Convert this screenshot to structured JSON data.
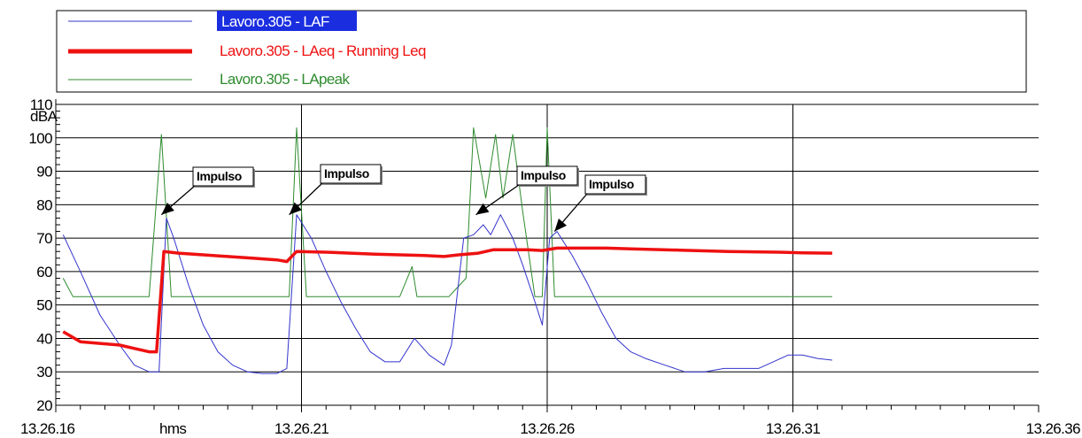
{
  "chart_data": {
    "type": "line",
    "ylabel": "dBA",
    "xlabel": "hms",
    "ylim": [
      20,
      110
    ],
    "xlim": [
      0,
      20
    ],
    "y_ticks": [
      20,
      30,
      40,
      50,
      60,
      70,
      80,
      90,
      100,
      110
    ],
    "x_ticks": [
      {
        "value": 0,
        "label": "13.26.16"
      },
      {
        "value": 5,
        "label": "13.26.21"
      },
      {
        "value": 10,
        "label": "13.26.26"
      },
      {
        "value": 15,
        "label": "13.26.31"
      },
      {
        "value": 20,
        "label": "13.26.36"
      }
    ],
    "grid": true,
    "legend_position": "top",
    "series": [
      {
        "name": "Lavoro.305 - LAF",
        "color": "#3333cc",
        "highlighted": true,
        "x": [
          0.15,
          0.5,
          0.9,
          1.3,
          1.6,
          1.9,
          2.1,
          2.25,
          2.4,
          2.7,
          3.0,
          3.3,
          3.6,
          3.9,
          4.2,
          4.5,
          4.7,
          4.9,
          5.2,
          5.5,
          5.8,
          6.1,
          6.4,
          6.7,
          7.0,
          7.3,
          7.6,
          7.9,
          8.05,
          8.3,
          8.5,
          8.7,
          8.85,
          9.05,
          9.3,
          9.5,
          9.75,
          9.9,
          10.05,
          10.2,
          10.5,
          10.8,
          11.1,
          11.4,
          11.7,
          12.0,
          12.4,
          12.8,
          13.2,
          13.6,
          14.0,
          14.3,
          14.6,
          14.9,
          15.2,
          15.5,
          15.8
        ],
        "y": [
          71,
          60,
          47,
          38,
          32,
          30,
          30,
          76,
          70,
          56,
          44,
          36,
          32,
          30,
          29.5,
          29.5,
          31,
          77,
          70,
          60,
          51,
          43,
          36,
          33,
          33,
          40,
          35,
          32,
          38,
          70,
          71,
          74,
          71,
          77,
          70,
          62,
          51,
          44,
          70,
          72,
          65,
          57,
          48,
          40,
          36,
          34,
          32,
          30,
          30,
          31,
          31,
          31,
          33,
          35,
          35,
          34,
          33.5
        ]
      },
      {
        "name": "Lavoro.305 - LAeq - Running Leq",
        "color": "#ee1111",
        "x": [
          0.15,
          0.5,
          0.9,
          1.3,
          1.6,
          1.9,
          2.05,
          2.2,
          2.5,
          3.0,
          3.5,
          4.0,
          4.5,
          4.7,
          4.9,
          5.5,
          6.0,
          6.5,
          7.0,
          7.5,
          7.9,
          8.2,
          8.6,
          8.9,
          9.2,
          9.6,
          9.9,
          10.2,
          10.7,
          11.2,
          11.7,
          12.2,
          12.7,
          13.2,
          13.7,
          14.2,
          14.7,
          15.2,
          15.8
        ],
        "y": [
          42,
          39,
          38.5,
          38,
          37,
          36,
          36,
          66,
          65.5,
          65,
          64.5,
          64,
          63.5,
          63,
          66,
          65.8,
          65.5,
          65.2,
          65,
          64.8,
          64.5,
          65,
          65.5,
          66.5,
          66.5,
          66.5,
          66.3,
          67,
          67,
          67,
          66.8,
          66.6,
          66.4,
          66.2,
          66,
          65.9,
          65.8,
          65.6,
          65.5
        ]
      },
      {
        "name": "Lavoro.305 - LApeak",
        "color": "#2e8b2e",
        "x": [
          0.15,
          0.35,
          0.6,
          1.0,
          1.5,
          1.9,
          2.15,
          2.35,
          2.6,
          3.0,
          3.5,
          4.0,
          4.5,
          4.75,
          4.9,
          5.1,
          5.3,
          5.7,
          6.2,
          6.6,
          7.0,
          7.25,
          7.35,
          7.45,
          7.6,
          8.0,
          8.35,
          8.5,
          8.75,
          8.95,
          9.1,
          9.3,
          9.5,
          9.75,
          9.9,
          10.0,
          10.15,
          10.4,
          11.0,
          11.5,
          12.0,
          12.5,
          13.0,
          13.5,
          14.0,
          14.5,
          15.0,
          15.5,
          15.8
        ],
        "y": [
          58,
          52.5,
          52.5,
          52.5,
          52.5,
          52.5,
          101,
          52.5,
          52.5,
          52.5,
          52.5,
          52.5,
          52.5,
          52.5,
          103,
          52.5,
          52.5,
          52.5,
          52.5,
          52.5,
          52.5,
          61.5,
          52.5,
          52.5,
          52.5,
          52.5,
          58,
          103,
          82,
          101,
          82,
          101,
          78,
          52.5,
          52.5,
          103,
          52.5,
          52.5,
          52.5,
          52.5,
          52.5,
          52.5,
          52.5,
          52.5,
          52.5,
          52.5,
          52.5,
          52.5,
          52.5
        ]
      }
    ],
    "annotations": [
      {
        "text": "Impulso",
        "x": 2.15,
        "y": 77
      },
      {
        "text": "Impulso",
        "x": 4.75,
        "y": 77
      },
      {
        "text": "Impulso",
        "x": 8.55,
        "y": 77
      },
      {
        "text": "Impulso",
        "x": 10.15,
        "y": 72
      }
    ]
  }
}
